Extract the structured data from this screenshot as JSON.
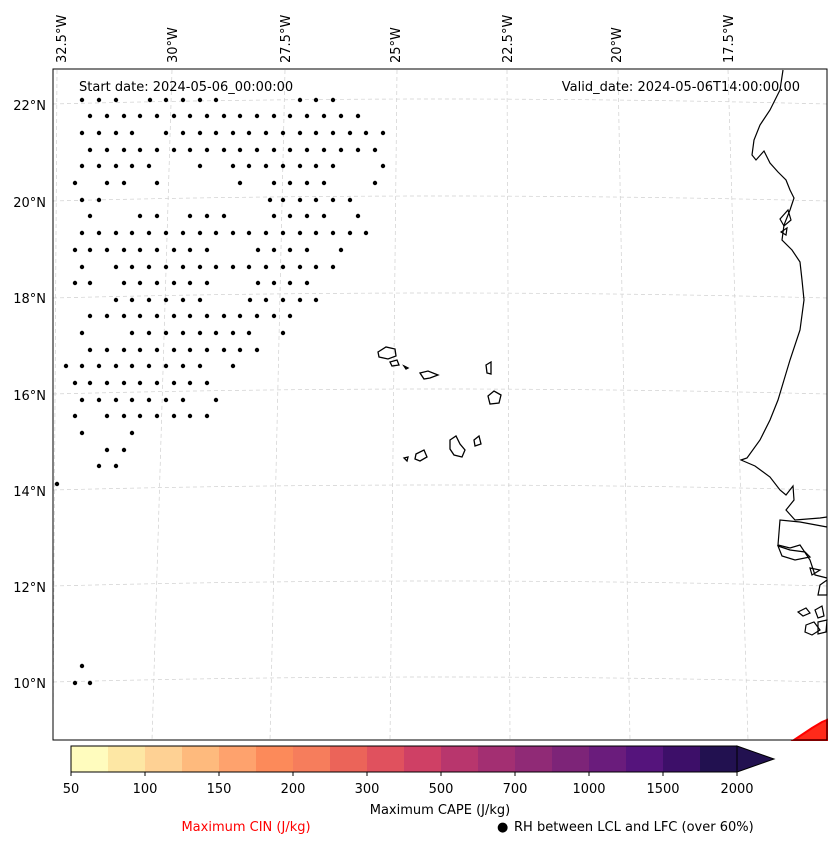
{
  "map": {
    "start_date": "Start date: 2024-05-06_00:00:00",
    "valid_date": "Valid_date: 2024-05-06T14:00:00.00",
    "lon_labels": [
      "32.5°W",
      "30°W",
      "27.5°W",
      "25°W",
      "22.5°W",
      "20°W",
      "17.5°W"
    ],
    "lat_labels": [
      "22°N",
      "20°N",
      "18°N",
      "16°N",
      "14°N",
      "12°N",
      "10°N"
    ]
  },
  "colorbar": {
    "tick_labels": [
      "50",
      "100",
      "150",
      "200",
      "300",
      "500",
      "700",
      "1000",
      "1500",
      "2000"
    ],
    "title": "Maximum CAPE (J/kg)",
    "colors": [
      "#fffcbe",
      "#fde7a4",
      "#fed194",
      "#feba7d",
      "#fea26d",
      "#fc8a5a",
      "#f67d5c",
      "#eb6459",
      "#e0515e",
      "#cf4065",
      "#b8366d",
      "#a32f72",
      "#902a76",
      "#7d2478",
      "#6a1c7c",
      "#55147c",
      "#3d0f69",
      "#221150"
    ]
  },
  "legend": {
    "cin_label": "Maximum CIN (J/kg)",
    "cin_color": "#ff0000",
    "rh_label": "RH between LCL and LFC (over 60%)",
    "rh_marker": "●"
  }
}
